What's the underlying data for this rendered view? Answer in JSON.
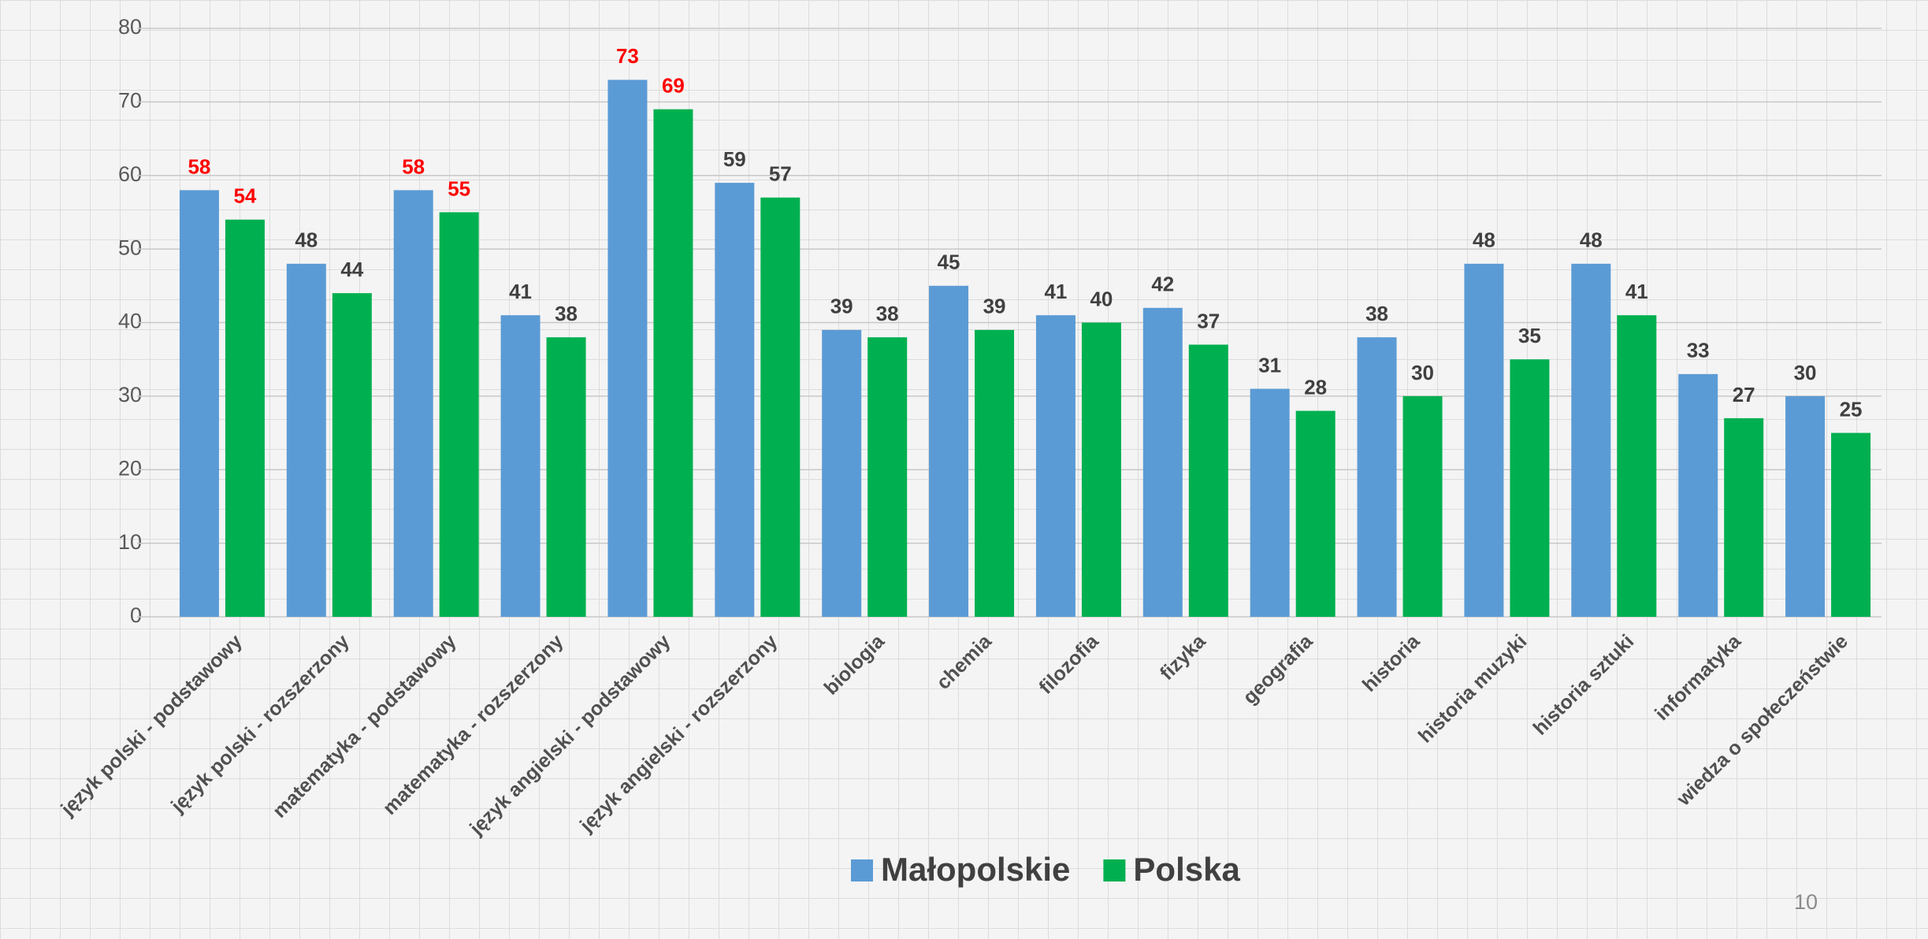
{
  "chart_data": {
    "type": "bar",
    "categories": [
      "język polski - podstawowy",
      "język polski - rozszerzony",
      "matematyka - podstawowy",
      "matematyka - rozszerzony",
      "język angielski - podstawowy",
      "język angielski - rozszerzony",
      "biologia",
      "chemia",
      "filozofia",
      "fizyka",
      "geografia",
      "historia",
      "historia muzyki",
      "historia sztuki",
      "informatyka",
      "wiedza o społeczeństwie"
    ],
    "series": [
      {
        "name": "Małopolskie",
        "color": "#5b9bd5",
        "values": [
          58,
          48,
          58,
          41,
          73,
          59,
          39,
          45,
          41,
          42,
          31,
          38,
          48,
          48,
          33,
          30
        ],
        "label_colors": [
          "#ff0000",
          "#404040",
          "#ff0000",
          "#404040",
          "#ff0000",
          "#404040",
          "#404040",
          "#404040",
          "#404040",
          "#404040",
          "#404040",
          "#404040",
          "#404040",
          "#404040",
          "#404040",
          "#404040"
        ]
      },
      {
        "name": "Polska",
        "color": "#00b050",
        "values": [
          54,
          44,
          55,
          38,
          69,
          57,
          38,
          39,
          40,
          37,
          28,
          30,
          35,
          41,
          27,
          25
        ],
        "label_colors": [
          "#ff0000",
          "#404040",
          "#ff0000",
          "#404040",
          "#ff0000",
          "#404040",
          "#404040",
          "#404040",
          "#404040",
          "#404040",
          "#404040",
          "#404040",
          "#404040",
          "#404040",
          "#404040",
          "#404040"
        ]
      }
    ],
    "ylim": [
      0,
      80
    ],
    "yticks": [
      0,
      10,
      20,
      30,
      40,
      50,
      60,
      70,
      80
    ],
    "grid": true,
    "legend": "bottom"
  },
  "page_number": "10"
}
